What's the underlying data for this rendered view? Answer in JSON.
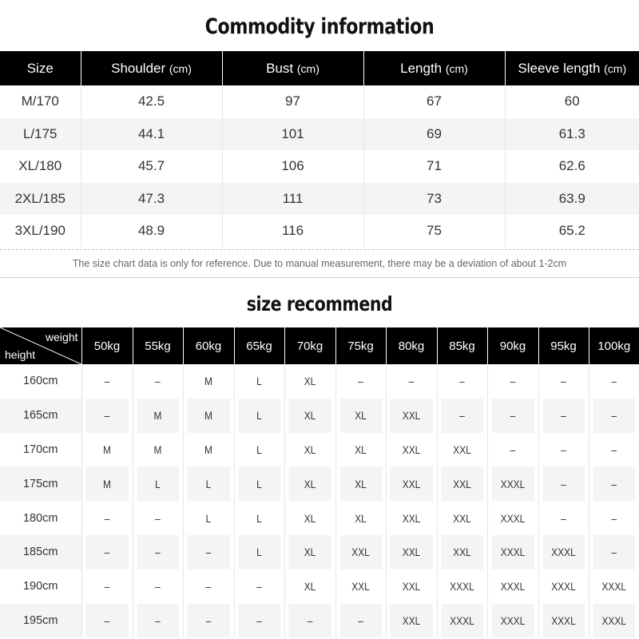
{
  "commodity": {
    "title": "Commodity information",
    "headers": [
      {
        "label": "Size",
        "unit": ""
      },
      {
        "label": "Shoulder ",
        "unit": "(cm)"
      },
      {
        "label": "Bust ",
        "unit": "(cm)"
      },
      {
        "label": "Length ",
        "unit": "(cm)"
      },
      {
        "label": "Sleeve length ",
        "unit": "(cm)"
      }
    ],
    "rows": [
      [
        "M/170",
        "42.5",
        "97",
        "67",
        "60"
      ],
      [
        "L/175",
        "44.1",
        "101",
        "69",
        "61.3"
      ],
      [
        "XL/180",
        "45.7",
        "106",
        "71",
        "62.6"
      ],
      [
        "2XL/185",
        "47.3",
        "111",
        "73",
        "63.9"
      ],
      [
        "3XL/190",
        "48.9",
        "116",
        "75",
        "65.2"
      ]
    ],
    "note": "The size chart data is only for reference. Due to manual measurement, there may be a deviation of about 1-2cm"
  },
  "recommend": {
    "title": "size recommend",
    "corner_weight": "weight",
    "corner_height": "height",
    "weights": [
      "50kg",
      "55kg",
      "60kg",
      "65kg",
      "70kg",
      "75kg",
      "80kg",
      "85kg",
      "90kg",
      "95kg",
      "100kg"
    ],
    "rows": [
      {
        "height": "160cm",
        "sizes": [
          "–",
          "–",
          "M",
          "L",
          "XL",
          "–",
          "–",
          "–",
          "–",
          "–",
          "–"
        ]
      },
      {
        "height": "165cm",
        "sizes": [
          "–",
          "M",
          "M",
          "L",
          "XL",
          "XL",
          "XXL",
          "–",
          "–",
          "–",
          "–"
        ]
      },
      {
        "height": "170cm",
        "sizes": [
          "M",
          "M",
          "M",
          "L",
          "XL",
          "XL",
          "XXL",
          "XXL",
          "–",
          "–",
          "–"
        ]
      },
      {
        "height": "175cm",
        "sizes": [
          "M",
          "L",
          "L",
          "L",
          "XL",
          "XL",
          "XXL",
          "XXL",
          "XXXL",
          "–",
          "–"
        ]
      },
      {
        "height": "180cm",
        "sizes": [
          "–",
          "–",
          "L",
          "L",
          "XL",
          "XL",
          "XXL",
          "XXL",
          "XXXL",
          "–",
          "–"
        ]
      },
      {
        "height": "185cm",
        "sizes": [
          "–",
          "–",
          "–",
          "L",
          "XL",
          "XXL",
          "XXL",
          "XXL",
          "XXXL",
          "XXXL",
          "–"
        ]
      },
      {
        "height": "190cm",
        "sizes": [
          "–",
          "–",
          "–",
          "–",
          "XL",
          "XXL",
          "XXL",
          "XXXL",
          "XXXL",
          "XXXL",
          "XXXL"
        ]
      },
      {
        "height": "195cm",
        "sizes": [
          "–",
          "–",
          "–",
          "–",
          "–",
          "–",
          "XXL",
          "XXXL",
          "XXXL",
          "XXXL",
          "XXXL"
        ]
      }
    ]
  }
}
